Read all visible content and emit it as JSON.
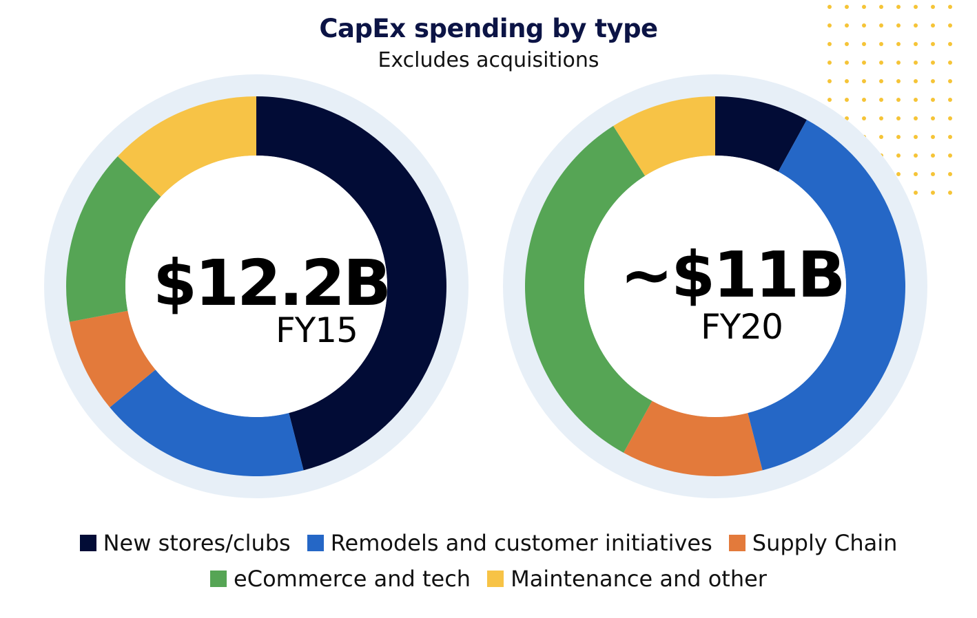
{
  "chart_data": [
    {
      "type": "pie",
      "title": "CapEx spending by type",
      "subtitle": "Excludes acquisitions",
      "center_value": "$12.2B",
      "center_label": "FY15",
      "categories": [
        "New stores/clubs",
        "Remodels and customer initiatives",
        "Supply Chain",
        "eCommerce and tech",
        "Maintenance and other"
      ],
      "values": [
        46,
        18,
        8,
        15,
        13
      ]
    },
    {
      "type": "pie",
      "title": "CapEx spending by type",
      "subtitle": "Excludes acquisitions",
      "center_value": "~$11B",
      "center_label": "FY20",
      "categories": [
        "New stores/clubs",
        "Remodels and customer initiatives",
        "Supply Chain",
        "eCommerce and tech",
        "Maintenance and other"
      ],
      "values": [
        8,
        38,
        12,
        33,
        9
      ]
    }
  ],
  "legend": [
    {
      "label": "New stores/clubs",
      "color": "#020c36"
    },
    {
      "label": "Remodels and customer initiatives",
      "color": "#2567c6"
    },
    {
      "label": "Supply Chain",
      "color": "#e37a3b"
    },
    {
      "label": "eCommerce and tech",
      "color": "#56a555"
    },
    {
      "label": "Maintenance and other",
      "color": "#f7c346"
    }
  ],
  "colors": {
    "ring_background": "#e7eff7",
    "decor_dots": "#f5c437"
  }
}
